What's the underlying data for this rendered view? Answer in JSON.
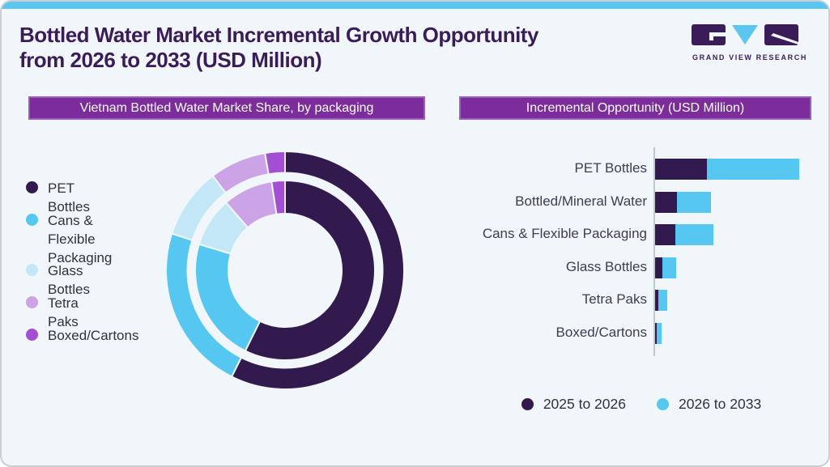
{
  "page": {
    "title_line1": "Bottled Water Market Incremental Growth Opportunity",
    "title_line2": "from 2026 to 2033 (USD Million)",
    "brand_name": "GRAND VIEW RESEARCH"
  },
  "colors": {
    "background": "#F1F6FA",
    "card_border": "#c9ced2",
    "top_bar": "#5BC6F0",
    "title_text": "#3A1D58",
    "banner_purple": "#7C2D9B",
    "dark_purple": "#331A4E",
    "light_blue": "#56C7F1",
    "pale_blue": "#C3E7F7",
    "lavender": "#CCA3E6",
    "medium_purple": "#A44FD3"
  },
  "left_panel": {
    "banner": "Vietnam Bottled Water Market Share, by packaging",
    "legend": [
      {
        "label": "PET Bottles",
        "color": "#331A4E"
      },
      {
        "label": "Cans & Flexible Packaging",
        "color": "#56C7F1"
      },
      {
        "label": "Glass Bottles",
        "color": "#C3E7F7"
      },
      {
        "label": "Tetra Paks",
        "color": "#CCA3E6"
      },
      {
        "label": "Boxed/Cartons",
        "color": "#A44FD3"
      }
    ]
  },
  "right_panel": {
    "banner": "Incremental Opportunity (USD Million)",
    "legend": [
      {
        "label": "2025 to 2026",
        "color": "#331A4E"
      },
      {
        "label": "2026 to 2033",
        "color": "#56C7F1"
      }
    ]
  },
  "chart_data": [
    {
      "type": "pie",
      "subtype": "double-ring-donut",
      "title": "Vietnam Bottled Water Market Share, by packaging",
      "categories": [
        "PET Bottles",
        "Cans & Flexible Packaging",
        "Glass Bottles",
        "Tetra Paks",
        "Boxed/Cartons"
      ],
      "colors": [
        "#331A4E",
        "#56C7F1",
        "#C3E7F7",
        "#CCA3E6",
        "#A44FD3"
      ],
      "series": [
        {
          "name": "inner ring",
          "values_pct": [
            57.3,
            22.4,
            8.9,
            9.0,
            2.4
          ]
        },
        {
          "name": "outer ring",
          "values_pct": [
            57.4,
            22.6,
            9.6,
            7.7,
            2.7
          ]
        }
      ],
      "start_angle_deg": 0,
      "direction": "clockwise",
      "note": "No numeric labels shown on chart; percentages estimated from arc angles. Legend on left side."
    },
    {
      "type": "bar",
      "orientation": "horizontal",
      "stacked": true,
      "title": "Incremental Opportunity (USD Million)",
      "categories": [
        "PET Bottles",
        "Bottled/Mineral Water",
        "Cans & Flexible Packaging",
        "Glass Bottles",
        "Tetra Paks",
        "Boxed/Cartons"
      ],
      "series": [
        {
          "name": "2025 to 2026",
          "color": "#331A4E",
          "values": [
            36.2,
            15.2,
            14.1,
            4.9,
            2.4,
            1.3
          ]
        },
        {
          "name": "2026 to 2033",
          "color": "#56C7F1",
          "values": [
            63.8,
            23.8,
            26.3,
            9.7,
            6.2,
            3.0
          ]
        }
      ],
      "xlim": [
        0,
        100
      ],
      "grid": false,
      "legend_position": "bottom",
      "note": "Axis has no tick labels; values are relative units estimated from bar lengths with the longest stacked bar (PET Bottles) = 100."
    }
  ]
}
